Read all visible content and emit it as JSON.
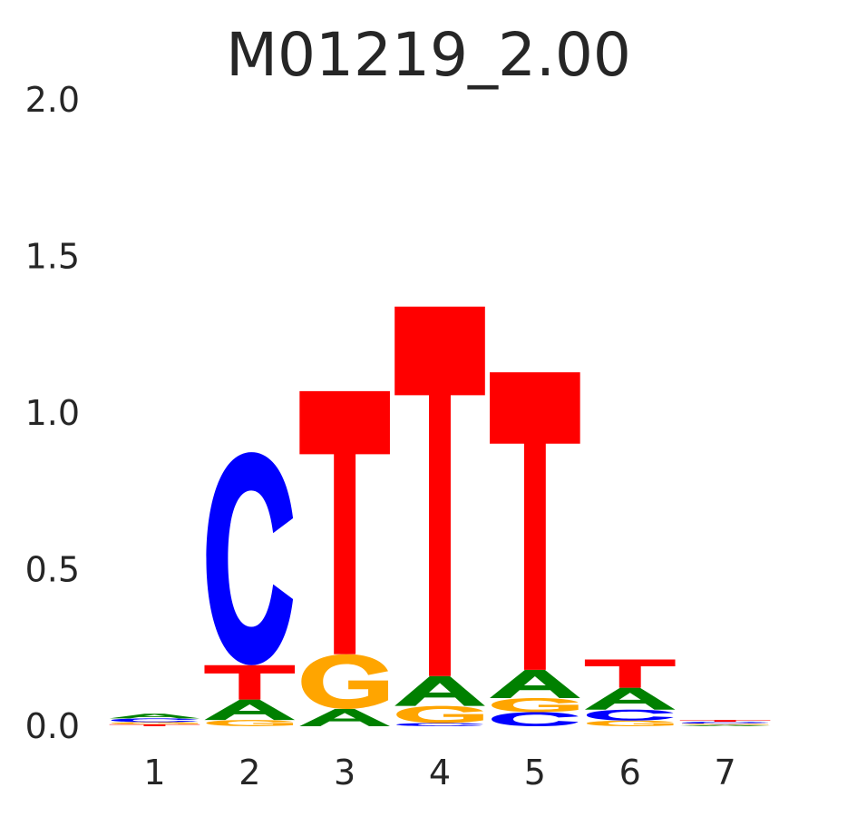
{
  "chart_data": {
    "type": "sequence_logo",
    "title": "M01219_2.00",
    "xlabel": "",
    "ylabel": "",
    "ylim": [
      0,
      2.0
    ],
    "yticks": [
      "0.0",
      "0.5",
      "1.0",
      "1.5",
      "2.0"
    ],
    "positions": [
      "1",
      "2",
      "3",
      "4",
      "5",
      "6",
      "7"
    ],
    "letter_colors": {
      "A": "#008000",
      "C": "#0000ff",
      "G": "#ffa500",
      "T": "#ff0000"
    },
    "stacks": [
      [
        {
          "letter": "T",
          "height": 0.006
        },
        {
          "letter": "G",
          "height": 0.007
        },
        {
          "letter": "C",
          "height": 0.012
        },
        {
          "letter": "A",
          "height": 0.015
        }
      ],
      [
        {
          "letter": "G",
          "height": 0.02
        },
        {
          "letter": "A",
          "height": 0.065
        },
        {
          "letter": "T",
          "height": 0.11
        },
        {
          "letter": "C",
          "height": 0.68
        }
      ],
      [
        {
          "letter": "A",
          "height": 0.055
        },
        {
          "letter": "G",
          "height": 0.175
        },
        {
          "letter": "T",
          "height": 0.84
        }
      ],
      [
        {
          "letter": "C",
          "height": 0.01
        },
        {
          "letter": "G",
          "height": 0.055
        },
        {
          "letter": "A",
          "height": 0.095
        },
        {
          "letter": "T",
          "height": 1.18
        }
      ],
      [
        {
          "letter": "C",
          "height": 0.045
        },
        {
          "letter": "G",
          "height": 0.045
        },
        {
          "letter": "A",
          "height": 0.09
        },
        {
          "letter": "T",
          "height": 0.95
        }
      ],
      [
        {
          "letter": "G",
          "height": 0.018
        },
        {
          "letter": "C",
          "height": 0.035
        },
        {
          "letter": "A",
          "height": 0.07
        },
        {
          "letter": "T",
          "height": 0.09
        }
      ],
      [
        {
          "letter": "A",
          "height": 0.004
        },
        {
          "letter": "G",
          "height": 0.004
        },
        {
          "letter": "C",
          "height": 0.006
        },
        {
          "letter": "T",
          "height": 0.006
        }
      ]
    ]
  }
}
